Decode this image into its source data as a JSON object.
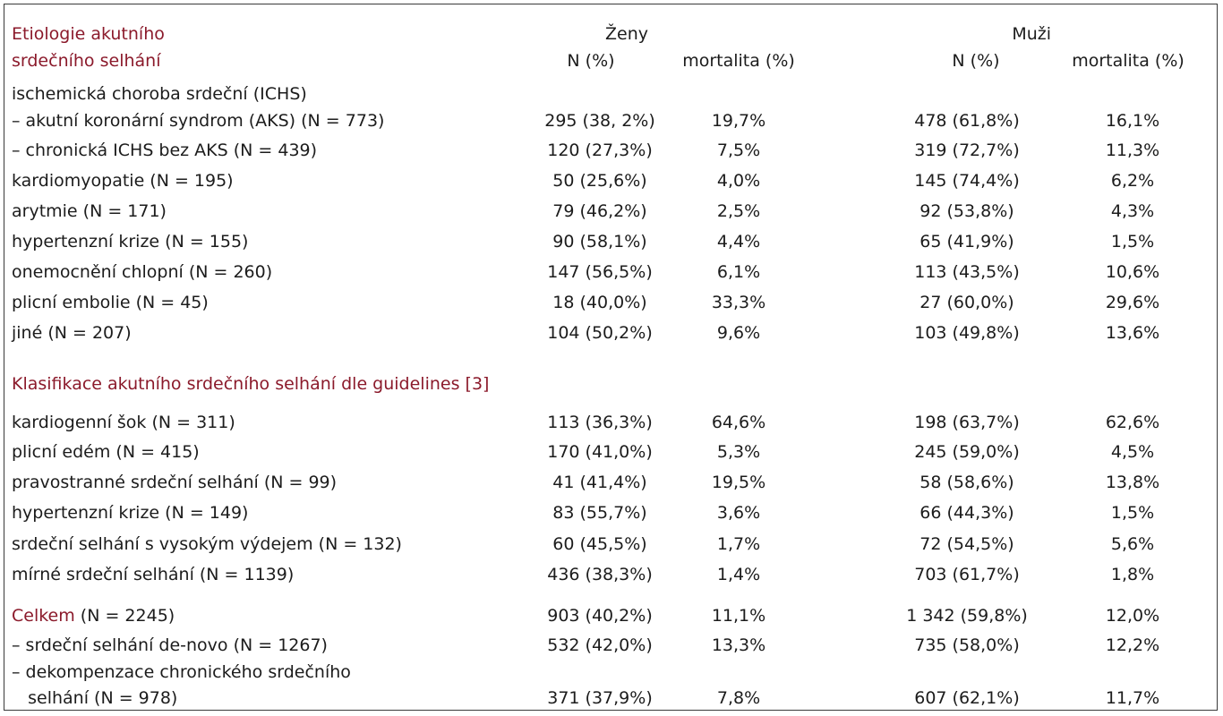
{
  "header": {
    "title_line1": "Etiologie akutního",
    "title_line2": "srdečního selhání",
    "women": "Ženy",
    "men": "Muži",
    "n_pct": "N (%)",
    "mortality": "mortalita (%)"
  },
  "section1": {
    "intro": "ischemická choroba srdeční (ICHS)",
    "rows": [
      {
        "label": "– akutní koronární syndrom (AKS) (N = 773)",
        "w_n": "295 (38, 2%)",
        "w_m": "19,7%",
        "m_n": "478 (61,8%)",
        "m_m": "16,1%"
      },
      {
        "label": "– chronická ICHS bez AKS (N = 439)",
        "w_n": "120 (27,3%)",
        "w_m": "7,5%",
        "m_n": "319 (72,7%)",
        "m_m": "11,3%"
      },
      {
        "label": "kardiomyopatie (N = 195)",
        "w_n": "50 (25,6%)",
        "w_m": "4,0%",
        "m_n": "145 (74,4%)",
        "m_m": "6,2%"
      },
      {
        "label": "arytmie (N = 171)",
        "w_n": "79 (46,2%)",
        "w_m": "2,5%",
        "m_n": "92 (53,8%)",
        "m_m": "4,3%"
      },
      {
        "label": "hypertenzní krize (N = 155)",
        "w_n": "90 (58,1%)",
        "w_m": "4,4%",
        "m_n": "65 (41,9%)",
        "m_m": "1,5%"
      },
      {
        "label": "onemocnění chlopní (N = 260)",
        "w_n": "147 (56,5%)",
        "w_m": "6,1%",
        "m_n": "113 (43,5%)",
        "m_m": "10,6%"
      },
      {
        "label": "plicní embolie (N = 45)",
        "w_n": "18 (40,0%)",
        "w_m": "33,3%",
        "m_n": "27 (60,0%)",
        "m_m": "29,6%"
      },
      {
        "label": "jiné (N = 207)",
        "w_n": "104 (50,2%)",
        "w_m": "9,6%",
        "m_n": "103 (49,8%)",
        "m_m": "13,6%"
      }
    ]
  },
  "section2": {
    "title": "Klasifikace akutního srdečního selhání dle guidelines [3]",
    "rows": [
      {
        "label": "kardiogenní šok (N = 311)",
        "w_n": "113 (36,3%)",
        "w_m": "64,6%",
        "m_n": "198 (63,7%)",
        "m_m": "62,6%"
      },
      {
        "label": "plicní edém (N = 415)",
        "w_n": "170 (41,0%)",
        "w_m": "5,3%",
        "m_n": "245 (59,0%)",
        "m_m": "4,5%"
      },
      {
        "label": "pravostranné srdeční selhání (N = 99)",
        "w_n": "41 (41,4%)",
        "w_m": "19,5%",
        "m_n": "58 (58,6%)",
        "m_m": "13,8%"
      },
      {
        "label": "hypertenzní krize (N = 149)",
        "w_n": "83 (55,7%)",
        "w_m": "3,6%",
        "m_n": "66 (44,3%)",
        "m_m": "1,5%"
      },
      {
        "label": "srdeční selhání s vysokým výdejem (N = 132)",
        "w_n": "60 (45,5%)",
        "w_m": "1,7%",
        "m_n": "72 (54,5%)",
        "m_m": "5,6%"
      },
      {
        "label": "mírné srdeční selhání (N = 1139)",
        "w_n": "436 (38,3%)",
        "w_m": "1,4%",
        "m_n": "703 (61,7%)",
        "m_m": "1,8%"
      }
    ]
  },
  "total": {
    "label_red": "Celkem",
    "label_rest": " (N = 2245)",
    "w_n": "903 (40,2%)",
    "w_m": "11,1%",
    "m_n": "1 342 (59,8%)",
    "m_m": "12,0%",
    "rows": [
      {
        "label": "– srdeční selhání de-novo (N = 1267)",
        "w_n": "532 (42,0%)",
        "w_m": "13,3%",
        "m_n": "735 (58,0%)",
        "m_m": "12,2%"
      },
      {
        "label": "– dekompenzace chronického srdečního",
        "w_n": "",
        "w_m": "",
        "m_n": "",
        "m_m": ""
      },
      {
        "label": "   selhání (N = 978)",
        "w_n": "371 (37,9%)",
        "w_m": "7,8%",
        "m_n": "607 (62,1%)",
        "m_m": "11,7%"
      }
    ]
  }
}
